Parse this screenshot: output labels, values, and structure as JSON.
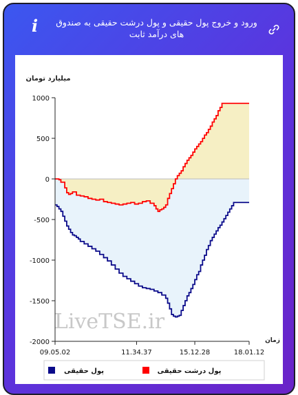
{
  "header": {
    "title": "ورود و خروج پول حقیقی و پول درشت حقیقی به صندوق های درآمد ثابت"
  },
  "chart_data": {
    "type": "area",
    "ylabel": "میلیارد تومان",
    "xlabel": "زمان",
    "ylim": [
      -2000,
      1000
    ],
    "yticks": [
      "1000",
      "500",
      "0",
      "-500",
      "-1000",
      "-1500",
      "-2000"
    ],
    "xticks": [
      "09.05.02",
      "11.34.37",
      "15.12.28",
      "18.01.12"
    ],
    "watermark": "LiveTSE.ir",
    "series": [
      {
        "name": "پول حقیقی",
        "color": "#0a0a8a",
        "fill": "#e8f3fb",
        "points": [
          [
            0,
            -320
          ],
          [
            1,
            -340
          ],
          [
            2,
            -370
          ],
          [
            3,
            -400
          ],
          [
            4,
            -460
          ],
          [
            5,
            -520
          ],
          [
            6,
            -580
          ],
          [
            7,
            -620
          ],
          [
            8,
            -660
          ],
          [
            9,
            -690
          ],
          [
            10,
            -700
          ],
          [
            11,
            -720
          ],
          [
            12,
            -740
          ],
          [
            13,
            -770
          ],
          [
            15,
            -800
          ],
          [
            17,
            -830
          ],
          [
            19,
            -860
          ],
          [
            21,
            -890
          ],
          [
            23,
            -930
          ],
          [
            25,
            -970
          ],
          [
            27,
            -1010
          ],
          [
            29,
            -1060
          ],
          [
            31,
            -1110
          ],
          [
            33,
            -1160
          ],
          [
            35,
            -1200
          ],
          [
            37,
            -1230
          ],
          [
            39,
            -1260
          ],
          [
            41,
            -1290
          ],
          [
            43,
            -1320
          ],
          [
            45,
            -1340
          ],
          [
            47,
            -1350
          ],
          [
            49,
            -1360
          ],
          [
            51,
            -1380
          ],
          [
            53,
            -1400
          ],
          [
            55,
            -1430
          ],
          [
            57,
            -1470
          ],
          [
            58,
            -1530
          ],
          [
            59,
            -1600
          ],
          [
            60,
            -1670
          ],
          [
            61,
            -1690
          ],
          [
            62,
            -1700
          ],
          [
            63,
            -1690
          ],
          [
            64,
            -1680
          ],
          [
            65,
            -1620
          ],
          [
            66,
            -1560
          ],
          [
            67,
            -1500
          ],
          [
            68,
            -1440
          ],
          [
            69,
            -1400
          ],
          [
            70,
            -1350
          ],
          [
            71,
            -1300
          ],
          [
            72,
            -1240
          ],
          [
            73,
            -1180
          ],
          [
            74,
            -1140
          ],
          [
            75,
            -1060
          ],
          [
            76,
            -1000
          ],
          [
            77,
            -940
          ],
          [
            78,
            -870
          ],
          [
            79,
            -820
          ],
          [
            80,
            -760
          ],
          [
            81,
            -720
          ],
          [
            82,
            -680
          ],
          [
            83,
            -640
          ],
          [
            84,
            -600
          ],
          [
            85,
            -570
          ],
          [
            86,
            -530
          ],
          [
            87,
            -490
          ],
          [
            88,
            -450
          ],
          [
            89,
            -410
          ],
          [
            90,
            -370
          ],
          [
            91,
            -330
          ],
          [
            92,
            -290
          ],
          [
            100,
            -290
          ]
        ]
      },
      {
        "name": "پول درشت حقیقی",
        "color": "#ff0000",
        "fill": "#f6efc4",
        "points": [
          [
            0,
            0
          ],
          [
            2,
            -10
          ],
          [
            3,
            -40
          ],
          [
            5,
            -110
          ],
          [
            6,
            -170
          ],
          [
            7,
            -190
          ],
          [
            8,
            -180
          ],
          [
            9,
            -160
          ],
          [
            11,
            -200
          ],
          [
            13,
            -210
          ],
          [
            15,
            -220
          ],
          [
            17,
            -240
          ],
          [
            19,
            -250
          ],
          [
            21,
            -260
          ],
          [
            23,
            -250
          ],
          [
            25,
            -280
          ],
          [
            27,
            -290
          ],
          [
            29,
            -300
          ],
          [
            31,
            -310
          ],
          [
            33,
            -320
          ],
          [
            35,
            -310
          ],
          [
            37,
            -300
          ],
          [
            39,
            -290
          ],
          [
            41,
            -310
          ],
          [
            43,
            -300
          ],
          [
            45,
            -280
          ],
          [
            47,
            -270
          ],
          [
            49,
            -300
          ],
          [
            51,
            -330
          ],
          [
            52,
            -370
          ],
          [
            53,
            -400
          ],
          [
            54,
            -380
          ],
          [
            55,
            -370
          ],
          [
            56,
            -350
          ],
          [
            57,
            -320
          ],
          [
            58,
            -240
          ],
          [
            59,
            -180
          ],
          [
            60,
            -120
          ],
          [
            61,
            -60
          ],
          [
            62,
            0
          ],
          [
            63,
            40
          ],
          [
            64,
            70
          ],
          [
            65,
            100
          ],
          [
            66,
            150
          ],
          [
            67,
            190
          ],
          [
            68,
            230
          ],
          [
            69,
            260
          ],
          [
            70,
            290
          ],
          [
            71,
            330
          ],
          [
            72,
            370
          ],
          [
            73,
            400
          ],
          [
            74,
            430
          ],
          [
            75,
            460
          ],
          [
            76,
            500
          ],
          [
            77,
            540
          ],
          [
            78,
            570
          ],
          [
            79,
            610
          ],
          [
            80,
            650
          ],
          [
            81,
            700
          ],
          [
            82,
            740
          ],
          [
            83,
            780
          ],
          [
            84,
            840
          ],
          [
            85,
            880
          ],
          [
            86,
            930
          ],
          [
            100,
            930
          ]
        ]
      }
    ],
    "legend_position": "bottom"
  },
  "colors": {
    "accent": "#4b45e6",
    "positive_fill": "#f6efc4",
    "negative_fill": "#e8f3fb"
  }
}
